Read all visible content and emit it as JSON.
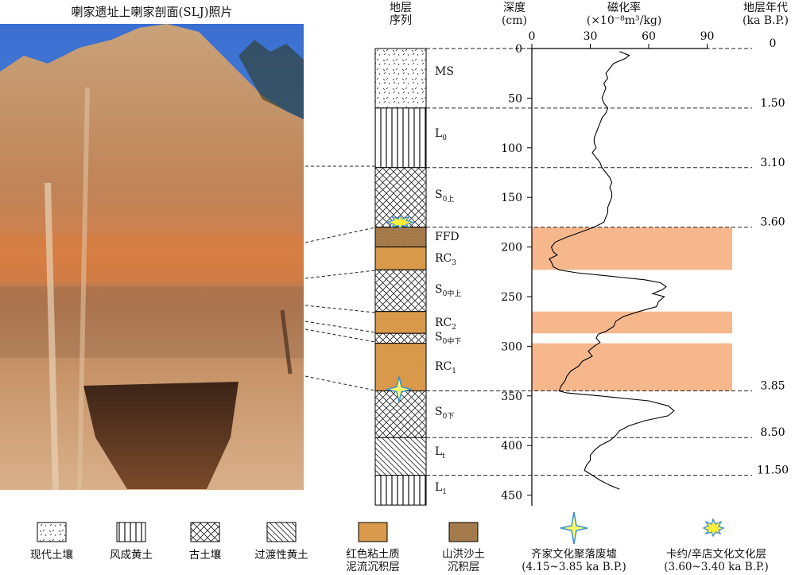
{
  "photo_title": "喇家遗址上喇家剖面(SLJ)照片",
  "headers": {
    "strata_l1": "地层",
    "strata_l2": "序列",
    "depth_l1": "深度",
    "depth_l2": "(cm)",
    "mag_l1": "磁化率",
    "mag_l2": "(×10⁻⁸m³/kg)",
    "age_l1": "地层年代",
    "age_l2": "(ka B.P.)"
  },
  "layers": [
    {
      "id": "MS",
      "top": 0,
      "bottom": 60,
      "fill": "modern-soil"
    },
    {
      "id": "L0",
      "top": 60,
      "bottom": 120,
      "fill": "loess"
    },
    {
      "id": "S0上",
      "top": 120,
      "bottom": 180,
      "fill": "paleosol"
    },
    {
      "id": "FFD",
      "top": 180,
      "bottom": 200,
      "fill": "flood-sand"
    },
    {
      "id": "RC3",
      "top": 200,
      "bottom": 223,
      "fill": "red-clay"
    },
    {
      "id": "S0中上",
      "top": 223,
      "bottom": 265,
      "fill": "paleosol"
    },
    {
      "id": "RC2",
      "top": 265,
      "bottom": 287,
      "fill": "red-clay"
    },
    {
      "id": "S0中下",
      "top": 287,
      "bottom": 297,
      "fill": "paleosol"
    },
    {
      "id": "RC1",
      "top": 297,
      "bottom": 345,
      "fill": "red-clay"
    },
    {
      "id": "S0下",
      "top": 345,
      "bottom": 392,
      "fill": "paleosol"
    },
    {
      "id": "Lt",
      "top": 392,
      "bottom": 430,
      "fill": "transitional-loess"
    },
    {
      "id": "L1",
      "top": 430,
      "bottom": 460,
      "fill": "loess"
    }
  ],
  "layer_labels": {
    "ms": "MS",
    "l0_main": "L",
    "l0_sub": "0",
    "s0u_main": "S",
    "s0u_sub": "0上",
    "ffd": "FFD",
    "rc3_main": "RC",
    "rc3_sub": "3",
    "s0mu_main": "S",
    "s0mu_sub": "0中上",
    "rc2_main": "RC",
    "rc2_sub": "2",
    "s0md_main": "S",
    "s0md_sub": "0中下",
    "rc1_main": "RC",
    "rc1_sub": "1",
    "s0d_main": "S",
    "s0d_sub": "0下",
    "lt_main": "L",
    "lt_sub": "t",
    "l1_main": "L",
    "l1_sub": "1"
  },
  "depth_ticks": [
    "0",
    "50",
    "100",
    "150",
    "200",
    "250",
    "300",
    "350",
    "400",
    "450"
  ],
  "mag_ticks": [
    "0",
    "30",
    "60",
    "90"
  ],
  "ages": [
    "0",
    "1.50",
    "3.10",
    "3.60",
    "3.85",
    "8.50",
    "11.50"
  ],
  "chart_data": {
    "type": "line",
    "xlabel": "磁化率",
    "ylabel": "深度",
    "xlim": [
      0,
      90
    ],
    "ylim": [
      0,
      450
    ],
    "x_axis_position": "top",
    "y_inverted": true,
    "boundary_depths": [
      0,
      60,
      120,
      180,
      345,
      392,
      430
    ],
    "boundary_ages_ka": [
      0,
      1.5,
      3.1,
      3.6,
      3.85,
      8.5,
      11.5
    ],
    "highlight_bands_depth": [
      [
        180,
        223
      ],
      [
        265,
        287
      ],
      [
        297,
        345
      ]
    ],
    "highlight_color": "#f6b78d",
    "series": [
      {
        "depth": [
          3,
          7,
          10,
          15,
          20,
          25,
          30,
          35,
          40,
          45,
          50,
          55,
          60,
          65,
          70,
          75,
          80,
          85,
          90,
          95,
          100,
          105,
          110,
          115,
          120,
          125,
          130,
          135,
          140,
          145,
          150,
          155,
          160,
          165,
          170,
          175,
          180,
          185,
          190,
          195,
          200,
          205,
          208,
          212,
          215,
          220,
          223,
          226,
          230,
          233,
          236,
          240,
          243,
          247,
          250,
          255,
          260,
          265,
          270,
          275,
          280,
          285,
          288,
          292,
          296,
          300,
          305,
          310,
          315,
          320,
          325,
          330,
          335,
          340,
          345,
          347,
          350,
          355,
          360,
          365,
          370,
          375,
          380,
          385,
          390,
          395,
          400,
          405,
          410,
          415,
          420,
          425,
          430,
          435,
          440,
          444
        ],
        "values": [
          45,
          50,
          48,
          42,
          40,
          38,
          39,
          37,
          38,
          37,
          36,
          37,
          39,
          38,
          36,
          35,
          34,
          33,
          32,
          32,
          33,
          31,
          33,
          35,
          36,
          38,
          40,
          41,
          40,
          41,
          41,
          40,
          39,
          39,
          38,
          37,
          32,
          25,
          18,
          12,
          10,
          11,
          13,
          9,
          10,
          11,
          14,
          23,
          43,
          58,
          66,
          69,
          67,
          62,
          68,
          65,
          64,
          55,
          47,
          43,
          42,
          38,
          34,
          33,
          35,
          32,
          29,
          31,
          26,
          24,
          20,
          18,
          17,
          15,
          14,
          18,
          35,
          60,
          70,
          73,
          70,
          58,
          50,
          45,
          43,
          40,
          35,
          32,
          30,
          30,
          28,
          27,
          31,
          35,
          40,
          45
        ]
      }
    ]
  },
  "legend": [
    {
      "label": "现代土壤"
    },
    {
      "label": "风成黄土"
    },
    {
      "label": "古土壤"
    },
    {
      "label": "过渡性黄土"
    },
    {
      "label_l1": "红色粘土质",
      "label_l2": "泥流沉积层"
    },
    {
      "label_l1": "山洪沙土",
      "label_l2": "沉积层"
    },
    {
      "label_l1": "齐家文化聚落废墟",
      "label_l2": "(4.15~3.85 ka B.P.)"
    },
    {
      "label_l1": "卡约/辛店文化文化层",
      "label_l2": "(3.60~3.40 ka B.P.)"
    }
  ],
  "colors": {
    "red_clay": "#d99a4c",
    "flood_sand": "#a67c4c",
    "band": "#f6b78d",
    "star_fill": "#ffff66",
    "star_edge": "#3a8fd6"
  }
}
